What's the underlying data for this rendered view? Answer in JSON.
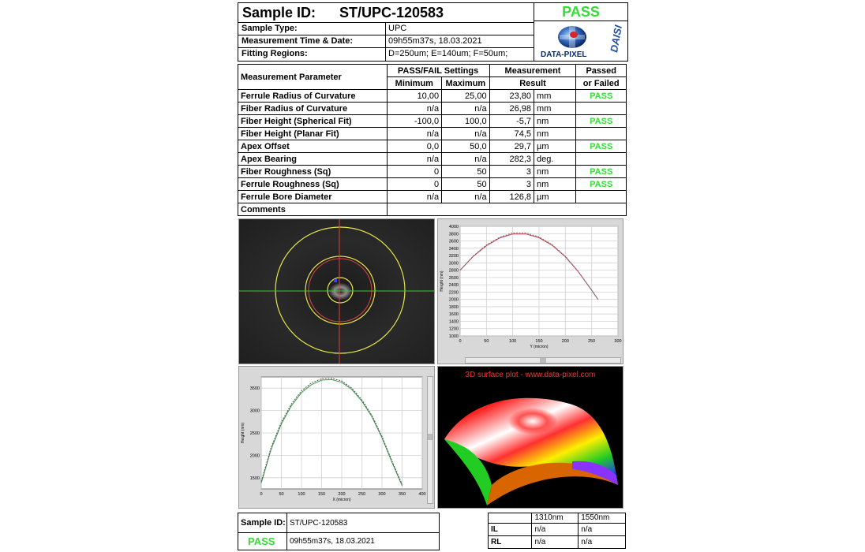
{
  "header": {
    "sample_id_label": "Sample ID:",
    "sample_id": "ST/UPC-120583",
    "status": "PASS",
    "rows": [
      {
        "label": "Sample Type:",
        "value": "UPC"
      },
      {
        "label": "Measurement Time & Date:",
        "value": "09h55m37s,  18.03.2021"
      },
      {
        "label": "Fitting Regions:",
        "value": "D=250um;   E=140um;   F=50um;"
      }
    ],
    "logo_text": "DATA-PIXEL",
    "logo_brand": "DAISI"
  },
  "params": {
    "col_param": "Measurement Parameter",
    "col_settings": "PASS/FAIL Settings",
    "col_min": "Minimum",
    "col_max": "Maximum",
    "col_result_1": "Measurement",
    "col_result_2": "Result",
    "col_pf_1": "Passed",
    "col_pf_2": "or Failed",
    "rows": [
      {
        "name": "Ferrule Radius of Curvature",
        "min": "10,00",
        "max": "25,00",
        "result": "23,80",
        "unit": "mm",
        "status": "PASS"
      },
      {
        "name": "Fiber Radius of Curvature",
        "min": "n/a",
        "max": "n/a",
        "result": "26,98",
        "unit": "mm",
        "status": ""
      },
      {
        "name": "Fiber Height (Spherical Fit)",
        "min": "-100,0",
        "max": "100,0",
        "result": "-5,7",
        "unit": "nm",
        "status": "PASS"
      },
      {
        "name": "Fiber Height (Planar Fit)",
        "min": "n/a",
        "max": "n/a",
        "result": "74,5",
        "unit": "nm",
        "status": ""
      },
      {
        "name": "Apex Offset",
        "min": "0,0",
        "max": "50,0",
        "result": "29,7",
        "unit": "µm",
        "status": "PASS"
      },
      {
        "name": "Apex Bearing",
        "min": "n/a",
        "max": "n/a",
        "result": "282,3",
        "unit": "deg.",
        "status": ""
      },
      {
        "name": "Fiber Roughness (Sq)",
        "min": "0",
        "max": "50",
        "result": "3",
        "unit": "nm",
        "status": "PASS"
      },
      {
        "name": "Ferrule Roughness (Sq)",
        "min": "0",
        "max": "50",
        "result": "3",
        "unit": "nm",
        "status": "PASS"
      },
      {
        "name": "Ferrule Bore Diameter",
        "min": "n/a",
        "max": "n/a",
        "result": "126,8",
        "unit": "µm",
        "status": ""
      }
    ],
    "comments_label": "Comments"
  },
  "plot_3d_title": "3D surface plot - www.data-pixel.com",
  "chart_data": [
    {
      "type": "line",
      "xlabel": "Y (micron)",
      "ylabel": "Height (nm)",
      "xlim": [
        0,
        300
      ],
      "ylim": [
        1000,
        4000
      ],
      "x_ticks": [
        0,
        50,
        100,
        150,
        200,
        250,
        300
      ],
      "y_ticks": [
        1000,
        1200,
        1400,
        1600,
        1800,
        2000,
        2200,
        2400,
        2600,
        2800,
        3000,
        3200,
        3400,
        3600,
        3800,
        4000
      ],
      "series": [
        {
          "color": "#cc3344",
          "x": [
            0,
            25,
            50,
            75,
            100,
            125,
            150,
            175,
            200,
            225,
            250,
            262
          ],
          "y": [
            2800,
            3180,
            3470,
            3680,
            3790,
            3790,
            3690,
            3480,
            3170,
            2750,
            2250,
            2000
          ]
        },
        {
          "color": "#777777",
          "x": [
            0,
            25,
            50,
            75,
            100,
            125,
            150,
            175,
            200,
            225,
            250,
            262
          ],
          "y": [
            2800,
            3190,
            3490,
            3700,
            3820,
            3820,
            3710,
            3500,
            3180,
            2760,
            2250,
            2000
          ]
        }
      ]
    },
    {
      "type": "line",
      "xlabel": "X (micron)",
      "ylabel": "Height (nm)",
      "xlim": [
        0,
        400
      ],
      "ylim": [
        1250,
        3750
      ],
      "x_ticks": [
        0,
        50,
        100,
        150,
        200,
        250,
        300,
        350,
        400
      ],
      "y_ticks": [
        1500,
        2000,
        2500,
        3000,
        3500
      ],
      "series": [
        {
          "color": "#3a9a4a",
          "x": [
            0,
            25,
            50,
            75,
            100,
            125,
            150,
            175,
            200,
            225,
            250,
            275,
            300,
            325,
            350
          ],
          "y": [
            1380,
            2150,
            2700,
            3110,
            3400,
            3580,
            3680,
            3690,
            3630,
            3470,
            3210,
            2860,
            2390,
            1840,
            1320
          ]
        },
        {
          "color": "#555555",
          "x": [
            0,
            25,
            50,
            75,
            100,
            125,
            150,
            175,
            200,
            225,
            250,
            275,
            300,
            325,
            350
          ],
          "y": [
            1420,
            2190,
            2740,
            3150,
            3440,
            3620,
            3710,
            3720,
            3660,
            3500,
            3240,
            2890,
            2420,
            1870,
            1350
          ]
        }
      ]
    }
  ],
  "footer": {
    "sample_id_label": "Sample ID:",
    "sample_id": "ST/UPC-120583",
    "status": "PASS",
    "datetime": "09h55m37s,   18.03.2021",
    "loss_table": {
      "cols": [
        "1310nm",
        "1550nm"
      ],
      "rows": [
        {
          "label": "IL",
          "v1": "n/a",
          "v2": "n/a"
        },
        {
          "label": "RL",
          "v1": "n/a",
          "v2": "n/a"
        }
      ]
    }
  }
}
